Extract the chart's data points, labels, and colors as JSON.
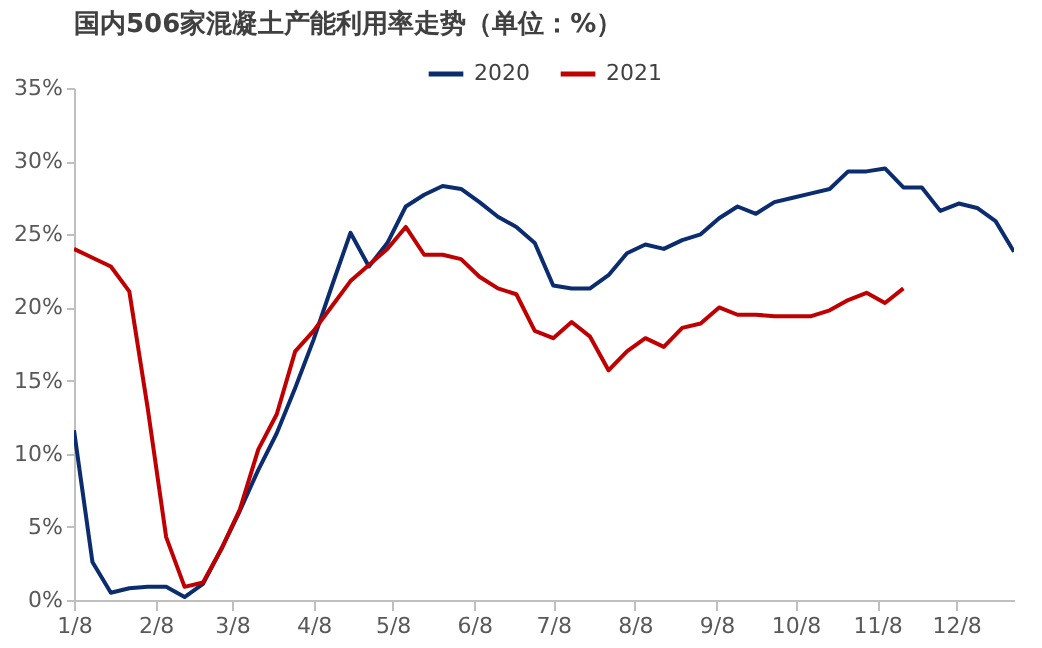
{
  "chart_data": {
    "type": "line",
    "title": "国内506家混凝土产能利用率走势（单位：%）",
    "x": [
      "--01-08",
      "--01-15",
      "--01-22",
      "--01-29",
      "--02-05",
      "--02-12",
      "--02-19",
      "--02-26",
      "--03-04",
      "--03-11",
      "--03-18",
      "--03-25",
      "--04-01",
      "--04-08",
      "--04-15",
      "--04-22",
      "--04-29",
      "--05-06",
      "--05-13",
      "--05-20",
      "--05-27",
      "--06-03",
      "--06-10",
      "--06-17",
      "--06-24",
      "--07-01",
      "--07-08",
      "--07-15",
      "--07-22",
      "--07-29",
      "--08-05",
      "--08-12",
      "--08-19",
      "--08-26",
      "--09-02",
      "--09-09",
      "--09-16",
      "--09-23",
      "--09-30",
      "--10-07",
      "--10-14",
      "--10-21",
      "--10-28",
      "--11-04",
      "--11-11",
      "--11-18",
      "--11-25",
      "--12-02",
      "--12-09",
      "--12-16",
      "--12-23",
      "--12-30"
    ],
    "series": [
      {
        "name": "2020",
        "color": "#0b2c6e",
        "values": [
          11.6,
          2.6,
          0.5,
          0.8,
          0.9,
          0.9,
          0.2,
          1.1,
          3.5,
          6.1,
          8.9,
          11.4,
          14.5,
          17.8,
          21.5,
          25.1,
          22.8,
          24.4,
          26.9,
          27.7,
          28.3,
          28.1,
          27.2,
          26.2,
          25.5,
          24.4,
          21.5,
          21.3,
          21.3,
          22.2,
          23.7,
          24.3,
          24.0,
          24.6,
          25.0,
          26.1,
          26.9,
          26.4,
          27.2,
          27.5,
          27.8,
          28.1,
          29.3,
          29.3,
          29.5,
          28.2,
          28.2,
          26.6,
          27.1,
          26.8,
          25.9,
          23.8
        ]
      },
      {
        "name": "2021",
        "color": "#c00000",
        "values": [
          24.0,
          23.4,
          22.8,
          21.1,
          13.1,
          4.3,
          0.9,
          1.2,
          3.5,
          6.2,
          10.3,
          12.7,
          17.0,
          18.4,
          20.1,
          21.8,
          22.9,
          24.0,
          25.5,
          23.6,
          23.6,
          23.3,
          22.1,
          21.3,
          20.9,
          18.4,
          17.9,
          19.0,
          18.0,
          15.7,
          17.0,
          17.9,
          17.3,
          18.6,
          18.9,
          20.0,
          19.5,
          19.5,
          19.4,
          19.4,
          19.4,
          19.8,
          20.5,
          21.0,
          20.3,
          21.3,
          null,
          null,
          null,
          null,
          null,
          null
        ]
      }
    ],
    "xlim": [
      "--01-08",
      "--12-30"
    ],
    "xticks": [
      {
        "value": "--01-08",
        "label": "1/8"
      },
      {
        "value": "--02-08",
        "label": "2/8"
      },
      {
        "value": "--03-08",
        "label": "3/8"
      },
      {
        "value": "--04-08",
        "label": "4/8"
      },
      {
        "value": "--05-08",
        "label": "5/8"
      },
      {
        "value": "--06-08",
        "label": "6/8"
      },
      {
        "value": "--07-08",
        "label": "7/8"
      },
      {
        "value": "--08-08",
        "label": "8/8"
      },
      {
        "value": "--09-08",
        "label": "9/8"
      },
      {
        "value": "--10-08",
        "label": "10/8"
      },
      {
        "value": "--11-08",
        "label": "11/8"
      },
      {
        "value": "--12-08",
        "label": "12/8"
      }
    ],
    "ylim": [
      0,
      35
    ],
    "yticks": [
      {
        "value": 0,
        "label": "0%"
      },
      {
        "value": 5,
        "label": "5%"
      },
      {
        "value": 10,
        "label": "10%"
      },
      {
        "value": 15,
        "label": "15%"
      },
      {
        "value": 20,
        "label": "20%"
      },
      {
        "value": 25,
        "label": "25%"
      },
      {
        "value": 30,
        "label": "30%"
      },
      {
        "value": 35,
        "label": "35%"
      }
    ],
    "legend": "top"
  }
}
